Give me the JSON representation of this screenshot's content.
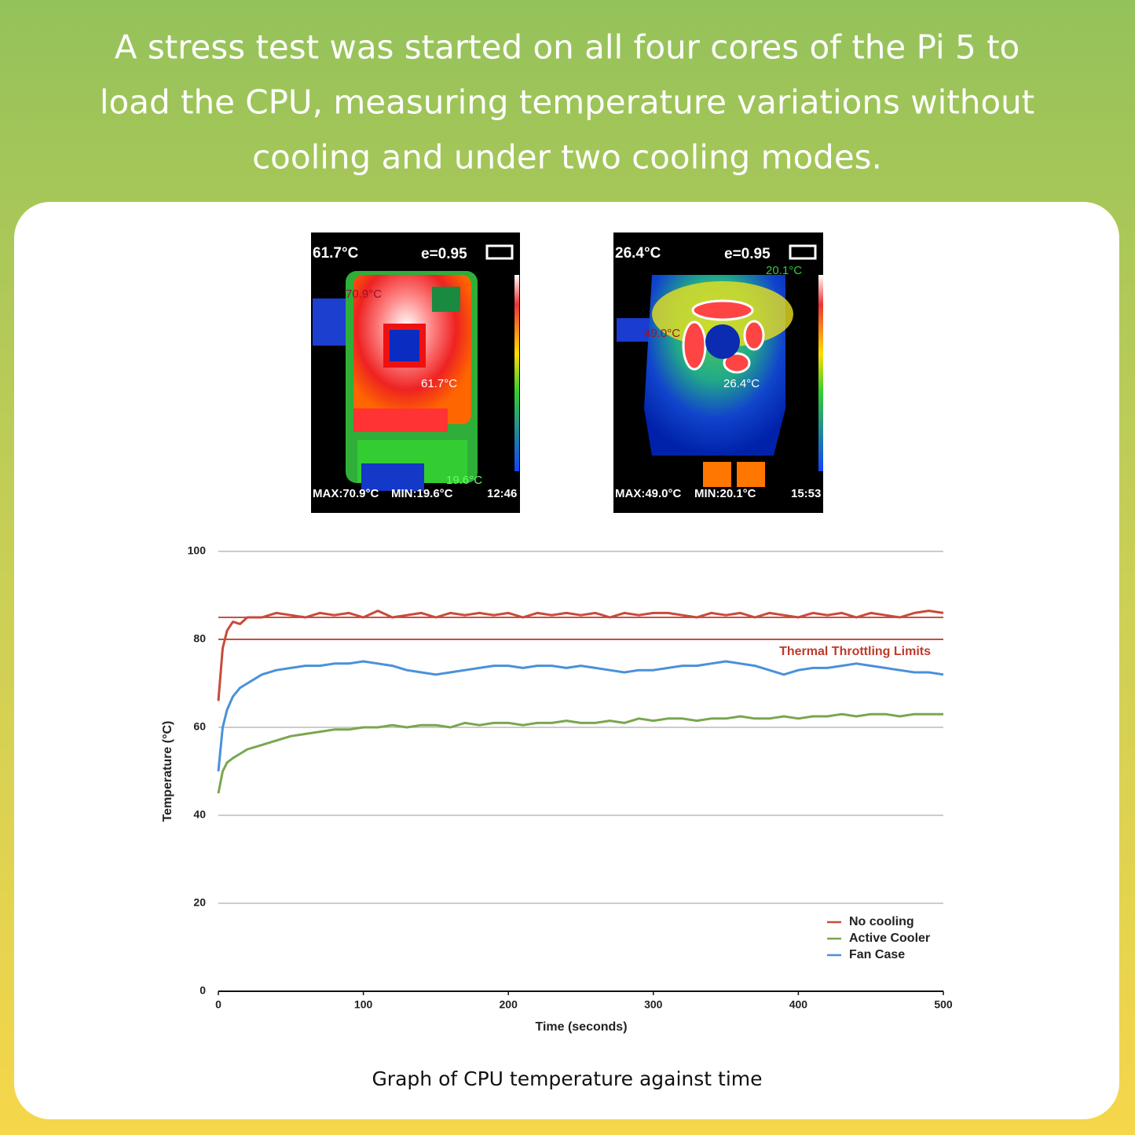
{
  "header": {
    "lines": [
      "A  stress test was started on all four cores of the Pi 5 to",
      "load the CPU,  measuring temperature variations without",
      "cooling and under two cooling modes."
    ]
  },
  "thermal_images": [
    {
      "center": "61.7°C",
      "emissivity": "e=0.95",
      "hot_spot": "70.9°C",
      "cross": "61.7°C",
      "cold_spot": "19.6°C",
      "max": "MAX:70.9°C",
      "min": "MIN:19.6°C",
      "time": "12:46"
    },
    {
      "center": "26.4°C",
      "emissivity": "e=0.95",
      "cold_spot": "20.1°C",
      "hot_spot": "49.0°C",
      "cross": "26.4°C",
      "max": "MAX:49.0°C",
      "min": "MIN:20.1°C",
      "time": "15:53"
    }
  ],
  "chart_data": {
    "type": "line",
    "caption": "Graph of CPU temperature against time",
    "x_label": "Time (seconds)",
    "y_label": "Temperature (°C)",
    "xlim": [
      0,
      500
    ],
    "xticks": [
      0,
      100,
      200,
      300,
      400,
      500
    ],
    "ylim": [
      0,
      100
    ],
    "yticks": [
      0,
      20,
      40,
      60,
      80,
      100
    ],
    "grid": true,
    "legend": "lower right",
    "reference_lines": [
      {
        "value": 85,
        "color": "#c0392b"
      },
      {
        "value": 80,
        "color": "#c0392b",
        "label": "Thermal Throttling Limits"
      }
    ],
    "x": [
      0,
      3,
      6,
      10,
      15,
      20,
      30,
      40,
      50,
      60,
      70,
      80,
      90,
      100,
      110,
      120,
      130,
      140,
      150,
      160,
      170,
      180,
      190,
      200,
      210,
      220,
      230,
      240,
      250,
      260,
      270,
      280,
      290,
      300,
      310,
      320,
      330,
      340,
      350,
      360,
      370,
      380,
      390,
      400,
      410,
      420,
      430,
      440,
      450,
      460,
      470,
      480,
      490,
      500
    ],
    "series": [
      {
        "name": "No cooling",
        "color": "#c84a3a",
        "values": [
          66,
          78,
          82,
          84,
          83.5,
          85,
          85,
          86,
          85.5,
          85,
          86,
          85.5,
          86,
          85,
          86.5,
          85,
          85.5,
          86,
          85,
          86,
          85.5,
          86,
          85.5,
          86,
          85,
          86,
          85.5,
          86,
          85.5,
          86,
          85,
          86,
          85.5,
          86,
          86,
          85.5,
          85,
          86,
          85.5,
          86,
          85,
          86,
          85.5,
          85,
          86,
          85.5,
          86,
          85,
          86,
          85.5,
          85,
          86,
          86.5,
          86
        ]
      },
      {
        "name": "Active Cooler",
        "color": "#7aa64f",
        "values": [
          45,
          50,
          52,
          53,
          54,
          55,
          56,
          57,
          58,
          58.5,
          59,
          59.5,
          59.5,
          60,
          60,
          60.5,
          60,
          60.5,
          60.5,
          60,
          61,
          60.5,
          61,
          61,
          60.5,
          61,
          61,
          61.5,
          61,
          61,
          61.5,
          61,
          62,
          61.5,
          62,
          62,
          61.5,
          62,
          62,
          62.5,
          62,
          62,
          62.5,
          62,
          62.5,
          62.5,
          63,
          62.5,
          63,
          63,
          62.5,
          63,
          63,
          63
        ]
      },
      {
        "name": "Fan Case",
        "color": "#4a90d9",
        "values": [
          50,
          60,
          64,
          67,
          69,
          70,
          72,
          73,
          73.5,
          74,
          74,
          74.5,
          74.5,
          75,
          74.5,
          74,
          73,
          72.5,
          72,
          72.5,
          73,
          73.5,
          74,
          74,
          73.5,
          74,
          74,
          73.5,
          74,
          73.5,
          73,
          72.5,
          73,
          73,
          73.5,
          74,
          74,
          74.5,
          75,
          74.5,
          74,
          73,
          72,
          73,
          73.5,
          73.5,
          74,
          74.5,
          74,
          73.5,
          73,
          72.5,
          72.5,
          72
        ]
      }
    ]
  }
}
